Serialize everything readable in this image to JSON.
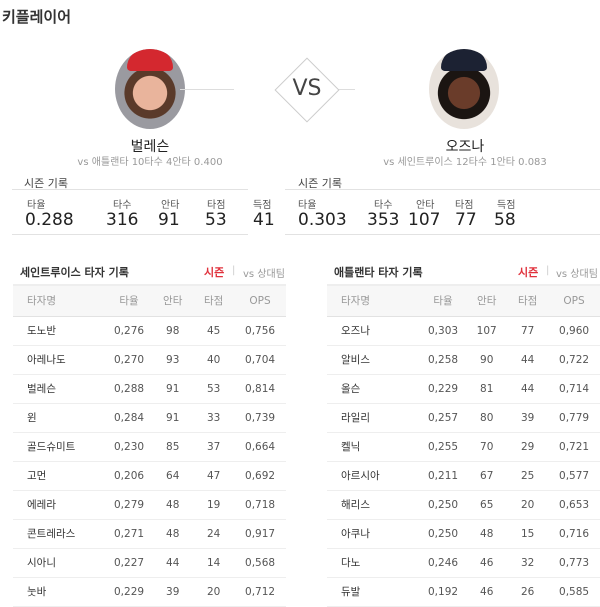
{
  "title": "키플레이어",
  "vs_label": "VS",
  "players": [
    {
      "name": "벌레슨",
      "vs_record": "vs 애틀랜타  10타수 4안타 0.400",
      "season_label": "시즌 기록",
      "stats": [
        {
          "label": "타율",
          "value": "0.288"
        },
        {
          "label": "타수",
          "value": "316"
        },
        {
          "label": "안타",
          "value": "91"
        },
        {
          "label": "타점",
          "value": "53"
        },
        {
          "label": "득점",
          "value": "41"
        }
      ]
    },
    {
      "name": "오즈나",
      "vs_record": "vs 세인트루이스  12타수 1안타 0.083",
      "season_label": "시즌 기록",
      "stats": [
        {
          "label": "타율",
          "value": "0.303"
        },
        {
          "label": "타수",
          "value": "353"
        },
        {
          "label": "안타",
          "value": "107"
        },
        {
          "label": "타점",
          "value": "77"
        },
        {
          "label": "득점",
          "value": "58"
        }
      ]
    }
  ],
  "tables": [
    {
      "title": "세인트루이스 타자 기록",
      "tab_season": "시즌",
      "separator": "|",
      "tab_vs": "vs 상대팀",
      "columns": [
        "타자명",
        "타율",
        "안타",
        "타점",
        "OPS"
      ],
      "rows": [
        [
          "도노반",
          "0,276",
          "98",
          "45",
          "0,756"
        ],
        [
          "아레나도",
          "0,270",
          "93",
          "40",
          "0,704"
        ],
        [
          "벌레슨",
          "0,288",
          "91",
          "53",
          "0,814"
        ],
        [
          "윈",
          "0,284",
          "91",
          "33",
          "0,739"
        ],
        [
          "골드슈미트",
          "0,230",
          "85",
          "37",
          "0,664"
        ],
        [
          "고먼",
          "0,206",
          "64",
          "47",
          "0,692"
        ],
        [
          "에레라",
          "0,279",
          "48",
          "19",
          "0,718"
        ],
        [
          "콘트레라스",
          "0,271",
          "48",
          "24",
          "0,917"
        ],
        [
          "시아니",
          "0,227",
          "44",
          "14",
          "0,568"
        ],
        [
          "눗바",
          "0,229",
          "39",
          "20",
          "0,712"
        ]
      ]
    },
    {
      "title": "애틀랜타 타자 기록",
      "tab_season": "시즌",
      "separator": "|",
      "tab_vs": "vs 상대팀",
      "columns": [
        "타자명",
        "타율",
        "안타",
        "타점",
        "OPS"
      ],
      "rows": [
        [
          "오즈나",
          "0,303",
          "107",
          "77",
          "0,960"
        ],
        [
          "알비스",
          "0,258",
          "90",
          "44",
          "0,722"
        ],
        [
          "올슨",
          "0,229",
          "81",
          "44",
          "0,714"
        ],
        [
          "라일리",
          "0,257",
          "80",
          "39",
          "0,779"
        ],
        [
          "켈닉",
          "0,255",
          "70",
          "29",
          "0,721"
        ],
        [
          "아르시아",
          "0,211",
          "67",
          "25",
          "0,577"
        ],
        [
          "해리스",
          "0,250",
          "65",
          "20",
          "0,653"
        ],
        [
          "아쿠나",
          "0,250",
          "48",
          "15",
          "0,716"
        ],
        [
          "다노",
          "0,246",
          "46",
          "32",
          "0,773"
        ],
        [
          "듀발",
          "0,192",
          "46",
          "26",
          "0,585"
        ]
      ]
    }
  ],
  "colors": {
    "accent": "#e0313c"
  }
}
